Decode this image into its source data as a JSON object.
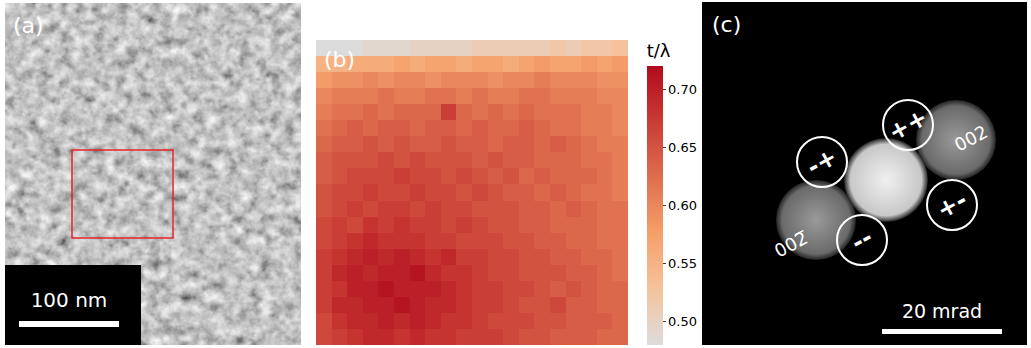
{
  "panel_a": {
    "label": "(a)",
    "scale_bar": "100 nm"
  },
  "chart_data": {
    "type": "heatmap",
    "label": "(b)",
    "colorbar_title": "t/λ",
    "color": "Inferno",
    "tick_labels": false,
    "color_range": [
      0.48,
      0.72
    ],
    "colorbar_ticks": [
      {
        "value": 0.5,
        "label": "0.50"
      },
      {
        "value": 0.55,
        "label": "0.55"
      },
      {
        "value": 0.6,
        "label": "0.60"
      },
      {
        "value": 0.65,
        "label": "0.65"
      },
      {
        "value": 0.7,
        "label": "0.70"
      }
    ],
    "z": [
      [
        0.48,
        0.48,
        0.48,
        0.49,
        0.49,
        0.49,
        0.5,
        0.5,
        0.5,
        0.5,
        0.51,
        0.51,
        0.51,
        0.51,
        0.51,
        0.52,
        0.51,
        0.52,
        0.52,
        0.53
      ],
      [
        0.55,
        0.55,
        0.56,
        0.56,
        0.56,
        0.57,
        0.56,
        0.57,
        0.57,
        0.56,
        0.57,
        0.57,
        0.56,
        0.57,
        0.58,
        0.57,
        0.57,
        0.58,
        0.57,
        0.58
      ],
      [
        0.58,
        0.59,
        0.59,
        0.6,
        0.59,
        0.6,
        0.6,
        0.59,
        0.6,
        0.6,
        0.6,
        0.59,
        0.6,
        0.6,
        0.61,
        0.6,
        0.6,
        0.6,
        0.59,
        0.59
      ],
      [
        0.6,
        0.61,
        0.61,
        0.61,
        0.62,
        0.61,
        0.61,
        0.62,
        0.62,
        0.61,
        0.62,
        0.61,
        0.61,
        0.62,
        0.62,
        0.61,
        0.61,
        0.61,
        0.6,
        0.6
      ],
      [
        0.61,
        0.62,
        0.62,
        0.63,
        0.62,
        0.63,
        0.63,
        0.63,
        0.67,
        0.63,
        0.62,
        0.63,
        0.62,
        0.63,
        0.62,
        0.62,
        0.62,
        0.61,
        0.61,
        0.6
      ],
      [
        0.62,
        0.63,
        0.64,
        0.63,
        0.64,
        0.64,
        0.63,
        0.64,
        0.64,
        0.63,
        0.64,
        0.63,
        0.63,
        0.64,
        0.63,
        0.62,
        0.62,
        0.61,
        0.61,
        0.6
      ],
      [
        0.63,
        0.64,
        0.64,
        0.65,
        0.64,
        0.65,
        0.64,
        0.64,
        0.65,
        0.64,
        0.64,
        0.63,
        0.64,
        0.64,
        0.63,
        0.64,
        0.63,
        0.62,
        0.61,
        0.61
      ],
      [
        0.64,
        0.65,
        0.65,
        0.65,
        0.66,
        0.65,
        0.66,
        0.65,
        0.65,
        0.65,
        0.64,
        0.65,
        0.64,
        0.64,
        0.63,
        0.63,
        0.63,
        0.62,
        0.62,
        0.61
      ],
      [
        0.64,
        0.65,
        0.66,
        0.66,
        0.66,
        0.67,
        0.66,
        0.66,
        0.65,
        0.66,
        0.65,
        0.64,
        0.65,
        0.63,
        0.64,
        0.63,
        0.63,
        0.63,
        0.62,
        0.61
      ],
      [
        0.65,
        0.66,
        0.66,
        0.67,
        0.66,
        0.66,
        0.67,
        0.66,
        0.66,
        0.65,
        0.66,
        0.65,
        0.64,
        0.64,
        0.63,
        0.64,
        0.63,
        0.62,
        0.62,
        0.61
      ],
      [
        0.65,
        0.66,
        0.67,
        0.66,
        0.67,
        0.67,
        0.66,
        0.67,
        0.66,
        0.66,
        0.65,
        0.65,
        0.65,
        0.64,
        0.64,
        0.63,
        0.64,
        0.63,
        0.62,
        0.62
      ],
      [
        0.66,
        0.67,
        0.66,
        0.68,
        0.67,
        0.68,
        0.67,
        0.67,
        0.66,
        0.67,
        0.66,
        0.65,
        0.65,
        0.64,
        0.64,
        0.63,
        0.63,
        0.63,
        0.62,
        0.62
      ],
      [
        0.66,
        0.67,
        0.68,
        0.69,
        0.68,
        0.68,
        0.68,
        0.67,
        0.67,
        0.66,
        0.66,
        0.66,
        0.65,
        0.65,
        0.64,
        0.64,
        0.63,
        0.63,
        0.62,
        0.62
      ],
      [
        0.67,
        0.68,
        0.69,
        0.7,
        0.69,
        0.7,
        0.69,
        0.68,
        0.69,
        0.67,
        0.67,
        0.66,
        0.66,
        0.65,
        0.65,
        0.64,
        0.64,
        0.63,
        0.63,
        0.62
      ],
      [
        0.67,
        0.69,
        0.7,
        0.69,
        0.7,
        0.7,
        0.71,
        0.69,
        0.68,
        0.68,
        0.67,
        0.66,
        0.66,
        0.65,
        0.65,
        0.65,
        0.64,
        0.64,
        0.63,
        0.62
      ],
      [
        0.67,
        0.68,
        0.7,
        0.7,
        0.71,
        0.7,
        0.7,
        0.7,
        0.69,
        0.68,
        0.67,
        0.67,
        0.66,
        0.66,
        0.65,
        0.64,
        0.65,
        0.64,
        0.63,
        0.63
      ],
      [
        0.67,
        0.69,
        0.69,
        0.7,
        0.7,
        0.71,
        0.7,
        0.69,
        0.69,
        0.68,
        0.67,
        0.67,
        0.66,
        0.65,
        0.65,
        0.66,
        0.64,
        0.64,
        0.63,
        0.63
      ],
      [
        0.66,
        0.68,
        0.69,
        0.69,
        0.7,
        0.69,
        0.7,
        0.69,
        0.68,
        0.68,
        0.67,
        0.66,
        0.66,
        0.66,
        0.65,
        0.65,
        0.64,
        0.64,
        0.64,
        0.63
      ],
      [
        0.66,
        0.67,
        0.68,
        0.69,
        0.69,
        0.68,
        0.69,
        0.68,
        0.68,
        0.67,
        0.67,
        0.67,
        0.66,
        0.65,
        0.65,
        0.64,
        0.64,
        0.64,
        0.63,
        0.63
      ]
    ]
  },
  "panel_c": {
    "label": "(c)",
    "scale_bar": "20 mrad",
    "reflections": [
      "002",
      "002̅"
    ],
    "quadrants": [
      "++",
      "-+",
      "+-",
      "--"
    ]
  }
}
